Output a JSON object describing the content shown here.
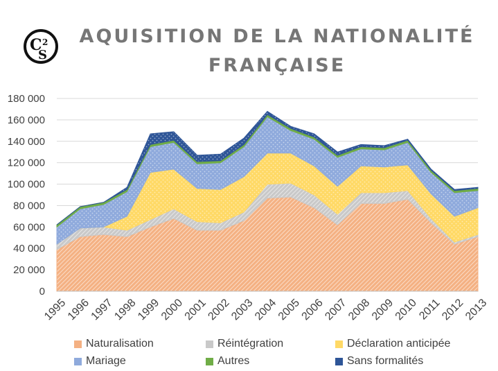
{
  "logo": {
    "text": "CS",
    "superscript": "2"
  },
  "title": {
    "line1": "AQUISITION DE LA NATIONALITÉ",
    "line2": "FRANÇAISE"
  },
  "chart_data": {
    "type": "area",
    "stacked": true,
    "title": "AQUISITION DE LA NATIONALITÉ FRANÇAISE",
    "xlabel": "",
    "ylabel": "",
    "x": [
      "1995",
      "1996",
      "1997",
      "1998",
      "1999",
      "2000",
      "2001",
      "2002",
      "2003",
      "2004",
      "2005",
      "2006",
      "2007",
      "2008",
      "2009",
      "2010",
      "2011",
      "2012",
      "2013"
    ],
    "ylim": [
      0,
      180000
    ],
    "yticks": [
      0,
      20000,
      40000,
      60000,
      80000,
      100000,
      120000,
      140000,
      160000,
      180000
    ],
    "ytick_labels": [
      "0",
      "20 000",
      "40 000",
      "60 000",
      "80 000",
      "100 000",
      "120 000",
      "140 000",
      "160 000",
      "180 000"
    ],
    "grid": true,
    "legend_position": "bottom",
    "series": [
      {
        "name": "Naturalisation",
        "color": "#f4b183",
        "pattern": "diagonal-hatch",
        "values": [
          39000,
          51000,
          53000,
          51000,
          60000,
          68000,
          57000,
          57000,
          66000,
          87000,
          88000,
          78000,
          62000,
          82000,
          82000,
          86000,
          64000,
          44000,
          51000
        ]
      },
      {
        "name": "Réintégration",
        "color": "#c9c9c9",
        "pattern": "diagonal-hatch",
        "values": [
          5000,
          8000,
          7000,
          6000,
          7000,
          9000,
          8000,
          7000,
          8000,
          13000,
          13000,
          12000,
          10000,
          10000,
          10000,
          8000,
          4000,
          2000,
          2000
        ]
      },
      {
        "name": "Déclaration anticipée",
        "color": "#ffd966",
        "pattern": "dotted",
        "values": [
          0,
          0,
          0,
          13000,
          44000,
          37000,
          31000,
          31000,
          33000,
          29000,
          28000,
          27000,
          26000,
          25000,
          24000,
          24000,
          23000,
          24000,
          25000
        ]
      },
      {
        "name": "Mariage",
        "color": "#8faadc",
        "pattern": "dotted",
        "values": [
          16000,
          18000,
          21000,
          23000,
          24000,
          25000,
          23000,
          25000,
          28000,
          34000,
          21000,
          25000,
          27000,
          16000,
          16000,
          21000,
          20000,
          22000,
          16000
        ]
      },
      {
        "name": "Autres",
        "color": "#70ad47",
        "pattern": "solid",
        "values": [
          2000,
          2000,
          2000,
          2000,
          2000,
          2000,
          2000,
          2000,
          2000,
          2000,
          2000,
          2000,
          2000,
          2000,
          2000,
          2000,
          2000,
          2000,
          2000
        ]
      },
      {
        "name": "Sans formalités",
        "color": "#2e5597",
        "pattern": "dotted",
        "values": [
          0,
          0,
          0,
          2000,
          10000,
          8000,
          6000,
          6000,
          6000,
          3000,
          2000,
          3000,
          3000,
          2000,
          2000,
          1000,
          1000,
          1000,
          1000
        ]
      }
    ]
  }
}
